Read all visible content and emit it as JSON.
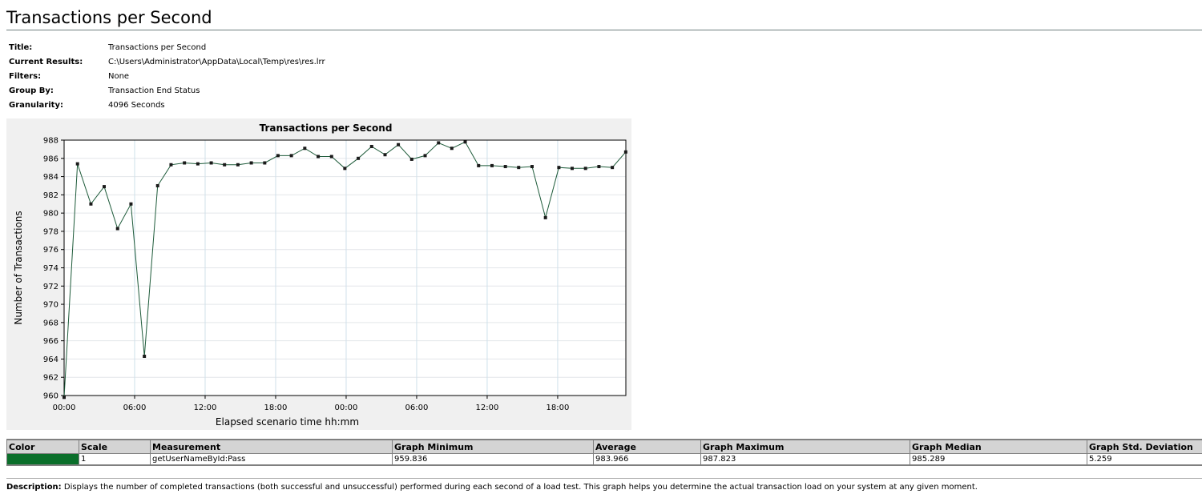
{
  "page": {
    "heading": "Transactions per Second"
  },
  "meta": [
    {
      "label": "Title:",
      "value": "Transactions per Second"
    },
    {
      "label": "Current Results:",
      "value": "C:\\Users\\Administrator\\AppData\\Local\\Temp\\res\\res.lrr"
    },
    {
      "label": "Filters:",
      "value": "None"
    },
    {
      "label": "Group By:",
      "value": "Transaction End Status"
    },
    {
      "label": "Granularity:",
      "value": "4096 Seconds"
    }
  ],
  "colors": {
    "series_line": "#1e5b3a",
    "series_swatch": "#0a6e2a",
    "chart_background": "#f0f0f0"
  },
  "chart_data": {
    "type": "line",
    "title": "Transactions per Second",
    "xlabel": "Elapsed scenario time hh:mm",
    "ylabel": "Number of Transactions",
    "x_unit": "hours",
    "xlim": [
      0,
      47.8
    ],
    "ylim": [
      960,
      988
    ],
    "y_ticks": [
      960,
      962,
      964,
      966,
      968,
      970,
      972,
      974,
      976,
      978,
      980,
      982,
      984,
      986,
      988
    ],
    "x_ticks": [
      {
        "value": 0,
        "label": "00:00"
      },
      {
        "value": 6,
        "label": "06:00"
      },
      {
        "value": 12,
        "label": "12:00"
      },
      {
        "value": 18,
        "label": "18:00"
      },
      {
        "value": 24,
        "label": "00:00"
      },
      {
        "value": 30,
        "label": "06:00"
      },
      {
        "value": 36,
        "label": "12:00"
      },
      {
        "value": 42,
        "label": "18:00"
      }
    ],
    "grid": true,
    "legend": "none",
    "series": [
      {
        "x": [
          0,
          1.14,
          2.28,
          3.41,
          4.55,
          5.69,
          6.83,
          7.96,
          9.1,
          10.24,
          11.38,
          12.52,
          13.65,
          14.79,
          15.93,
          17.07,
          18.2,
          19.34,
          20.48,
          21.62,
          22.76,
          23.89,
          25.03,
          26.17,
          27.31,
          28.44,
          29.58,
          30.72,
          31.86,
          32.99,
          34.13,
          35.27,
          36.41,
          37.55,
          38.68,
          39.82,
          40.96,
          42.1,
          43.23,
          44.37,
          45.51,
          46.65,
          47.79
        ],
        "y": [
          959.8,
          985.4,
          981.0,
          982.9,
          978.3,
          981.0,
          964.3,
          983.0,
          985.3,
          985.5,
          985.4,
          985.5,
          985.3,
          985.3,
          985.5,
          985.5,
          986.3,
          986.3,
          987.1,
          986.2,
          986.2,
          984.9,
          986.0,
          987.3,
          986.4,
          987.5,
          985.9,
          986.3,
          987.7,
          987.1,
          987.8,
          985.2,
          985.2,
          985.1,
          985.0,
          985.1,
          979.5,
          985.0,
          984.9,
          984.9,
          985.1,
          985.0,
          986.7
        ]
      }
    ]
  },
  "stats_table": {
    "headers": [
      "Color",
      "Scale",
      "Measurement",
      "Graph Minimum",
      "Average",
      "Graph Maximum",
      "Graph Median",
      "Graph Std. Deviation"
    ],
    "row": {
      "scale": "1",
      "measurement": "getUserNameById:Pass",
      "min": "959.836",
      "avg": "983.966",
      "max": "987.823",
      "median": "985.289",
      "std": "5.259"
    }
  },
  "description": {
    "label": "Description:",
    "text": " Displays the number of completed transactions (both successful and unsuccessful) performed during each second of a load test. This graph helps you determine the actual transaction load on your system at any given moment."
  }
}
